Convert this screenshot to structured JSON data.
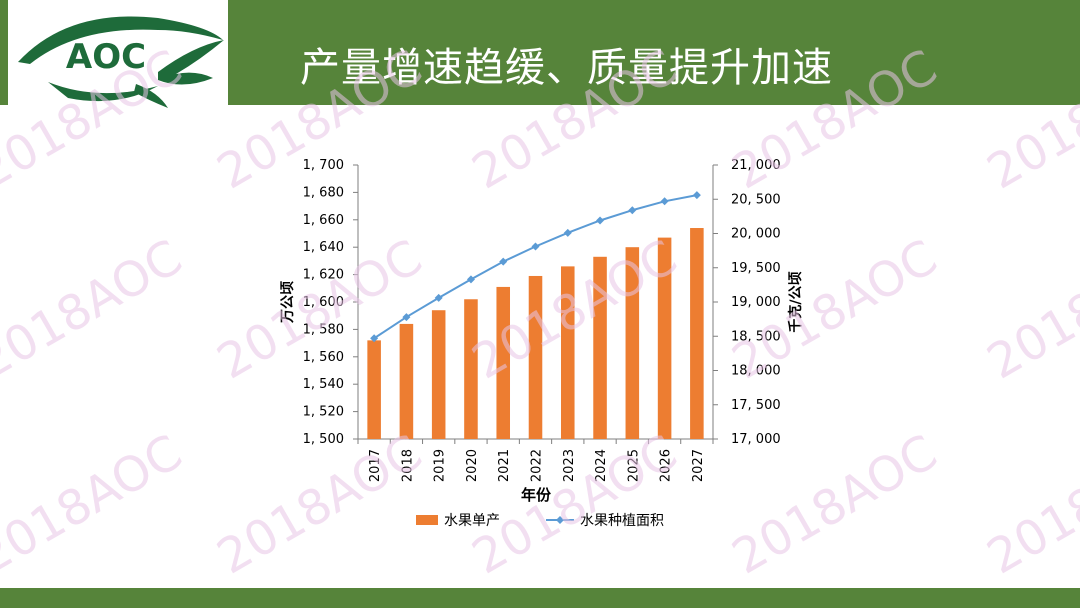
{
  "header": {
    "title": "产量增速趋缓、质量提升加速",
    "logo_text": "AOC"
  },
  "watermark": {
    "text": "2018AOC"
  },
  "colors": {
    "header_green": "#56843a",
    "bar_orange": "#ed7d31",
    "line_blue": "#5b9bd5",
    "logo_green": "#1e6b3a",
    "watermark_pink": "#e8c4e6"
  },
  "chart_data": {
    "type": "bar",
    "xlabel": "年份",
    "categories": [
      "2017",
      "2018",
      "2019",
      "2020",
      "2021",
      "2022",
      "2023",
      "2024",
      "2025",
      "2026",
      "2027"
    ],
    "y_left": {
      "label": "万公顷",
      "range": [
        1500,
        1700
      ],
      "ticks": [
        "1, 500",
        "1, 520",
        "1, 540",
        "1, 560",
        "1, 580",
        "1, 600",
        "1, 620",
        "1, 640",
        "1, 660",
        "1, 680",
        "1, 700"
      ],
      "tick_values": [
        1500,
        1520,
        1540,
        1560,
        1580,
        1600,
        1620,
        1640,
        1660,
        1680,
        1700
      ]
    },
    "y_right": {
      "label": "千克/公顷",
      "range": [
        17000,
        21000
      ],
      "ticks": [
        "17, 000",
        "17, 500",
        "18, 000",
        "18, 500",
        "19, 000",
        "19, 500",
        "20, 000",
        "20, 500",
        "21, 000"
      ],
      "tick_values": [
        17000,
        17500,
        18000,
        18500,
        19000,
        19500,
        20000,
        20500,
        21000
      ]
    },
    "series": [
      {
        "name": "水果单产",
        "type": "bar",
        "axis": "left",
        "values": [
          1572,
          1584,
          1594,
          1602,
          1611,
          1619,
          1626,
          1633,
          1640,
          1647,
          1654
        ]
      },
      {
        "name": "水果种植面积",
        "type": "line",
        "axis": "right",
        "values": [
          18470,
          18780,
          19060,
          19330,
          19590,
          19810,
          20010,
          20190,
          20340,
          20470,
          20560
        ]
      }
    ],
    "legend": "bottom"
  }
}
